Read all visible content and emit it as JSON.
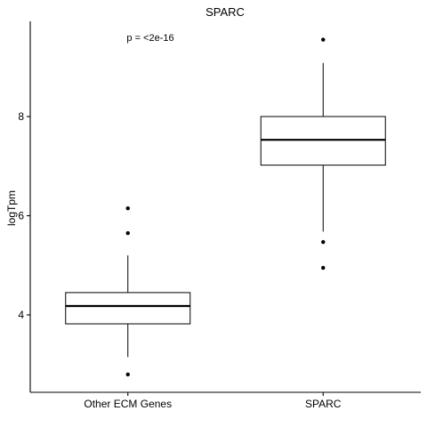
{
  "chart_data": {
    "type": "box",
    "title": "SPARC",
    "xlabel": "",
    "ylabel": "logTpm",
    "categories": [
      "Other ECM Genes",
      "SPARC"
    ],
    "ylim": [
      2.5,
      10.1
    ],
    "yticks": [
      "4",
      "6",
      "8"
    ],
    "annotation": "p = <2e-16",
    "grid": false,
    "boxes": [
      {
        "category": "Other ECM Genes",
        "whisker_low": 3.15,
        "q1": 3.82,
        "median": 4.18,
        "q3": 4.45,
        "whisker_high": 5.2,
        "outliers": [
          2.8,
          5.65,
          6.15
        ]
      },
      {
        "category": "SPARC",
        "whisker_low": 5.68,
        "q1": 7.02,
        "median": 7.53,
        "q3": 8.0,
        "whisker_high": 9.08,
        "outliers": [
          4.95,
          5.47,
          9.55
        ]
      }
    ]
  }
}
